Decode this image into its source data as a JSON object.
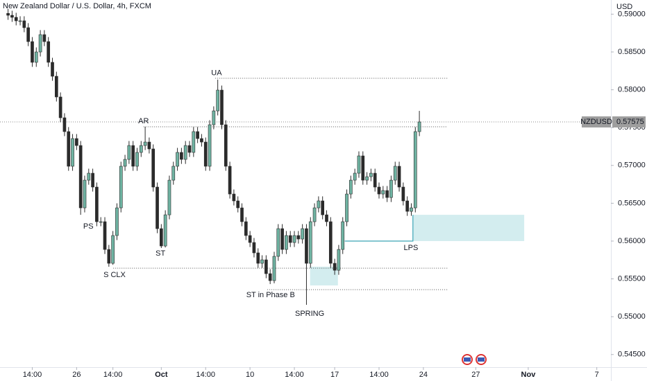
{
  "chart_data": {
    "type": "candlestick",
    "title": "New Zealand Dollar / U.S. Dollar, 4h, FXCM",
    "y_axis_label": "USD",
    "symbol": "NZDUSD",
    "up_color": "#6fb3a2",
    "down_color": "#2b2b2b",
    "open": [
      0.5901,
      0.58985,
      0.58958,
      0.58912,
      0.58912,
      0.58821,
      0.58637,
      0.58363,
      0.585,
      0.58729,
      0.58637,
      0.58363,
      0.58179,
      0.57905,
      0.5763,
      0.57447,
      0.56989,
      0.57355,
      0.57263,
      0.56439,
      0.56805,
      0.56897,
      0.56714,
      0.56256,
      0.56256,
      0.55889,
      0.55706,
      0.56073,
      0.56439,
      0.56989,
      0.5708,
      0.57263,
      0.56989,
      0.57172,
      0.57263,
      0.57309,
      0.57218,
      0.56714,
      0.56164,
      0.55935,
      0.56347,
      0.56805,
      0.56989,
      0.57172,
      0.5708,
      0.57263,
      0.57172,
      0.57447,
      0.57355,
      0.57309,
      0.56989,
      0.57538,
      0.57721,
      0.57996,
      0.57538,
      0.56989,
      0.56622,
      0.56531,
      0.56439,
      0.56256,
      0.56073,
      0.55981,
      0.55844,
      0.55706,
      0.55752,
      0.55569,
      0.55477,
      0.55798,
      0.56164,
      0.55889,
      0.56073,
      0.55981,
      0.56073,
      0.56027,
      0.56164,
      0.55706,
      0.56256,
      0.56439,
      0.56531,
      0.56347,
      0.56256,
      0.55706,
      0.55614,
      0.55889,
      0.56256,
      0.56622,
      0.56805,
      0.56897,
      0.57126,
      0.56805,
      0.56851,
      0.56897,
      0.56714,
      0.56622,
      0.56668,
      0.56576,
      0.56805,
      0.56989,
      0.56714,
      0.56531,
      0.56393,
      0.56439,
      0.57447
    ],
    "high": [
      0.5907,
      0.59045,
      0.59018,
      0.58972,
      0.58972,
      0.58881,
      0.58697,
      0.5856,
      0.58789,
      0.58789,
      0.58697,
      0.58423,
      0.58239,
      0.57965,
      0.5769,
      0.57507,
      0.57415,
      0.57415,
      0.57323,
      0.56865,
      0.56957,
      0.56957,
      0.56774,
      0.56316,
      0.56316,
      0.55949,
      0.56133,
      0.56499,
      0.57049,
      0.5714,
      0.57323,
      0.57323,
      0.57232,
      0.57323,
      0.57511,
      0.57369,
      0.57278,
      0.56774,
      0.56224,
      0.56407,
      0.56865,
      0.57049,
      0.57232,
      0.57232,
      0.57323,
      0.57323,
      0.57507,
      0.57507,
      0.57415,
      0.57369,
      0.57598,
      0.57781,
      0.58134,
      0.58056,
      0.57598,
      0.57049,
      0.56682,
      0.56591,
      0.56499,
      0.56316,
      0.56133,
      0.56041,
      0.55904,
      0.55812,
      0.55812,
      0.55629,
      0.55858,
      0.56224,
      0.56224,
      0.56133,
      0.56133,
      0.56133,
      0.56133,
      0.56224,
      0.56224,
      0.56316,
      0.56499,
      0.56591,
      0.56591,
      0.56407,
      0.56316,
      0.55766,
      0.55949,
      0.56316,
      0.56682,
      0.56865,
      0.56957,
      0.57186,
      0.57186,
      0.56911,
      0.56957,
      0.56957,
      0.56774,
      0.56728,
      0.56728,
      0.56865,
      0.57049,
      0.57049,
      0.56774,
      0.56591,
      0.56499,
      0.57507,
      0.57721
    ],
    "low": [
      0.58925,
      0.58898,
      0.58852,
      0.58852,
      0.58761,
      0.58577,
      0.58303,
      0.58303,
      0.5844,
      0.58577,
      0.58303,
      0.58119,
      0.57845,
      0.5757,
      0.57387,
      0.56929,
      0.56929,
      0.57203,
      0.56347,
      0.56379,
      0.56745,
      0.56654,
      0.56196,
      0.56196,
      0.55829,
      0.5566,
      0.55686,
      0.56013,
      0.56379,
      0.56929,
      0.5702,
      0.56929,
      0.56929,
      0.57112,
      0.57203,
      0.57158,
      0.56654,
      0.56104,
      0.55908,
      0.55915,
      0.56287,
      0.56745,
      0.56929,
      0.5702,
      0.5702,
      0.57112,
      0.57112,
      0.57295,
      0.57249,
      0.56929,
      0.56929,
      0.57478,
      0.57661,
      0.57478,
      0.56929,
      0.56562,
      0.56471,
      0.56379,
      0.56196,
      0.56013,
      0.55921,
      0.55784,
      0.55646,
      0.55646,
      0.55509,
      0.55431,
      0.55441,
      0.55738,
      0.55829,
      0.55829,
      0.55921,
      0.55921,
      0.55967,
      0.55967,
      0.55157,
      0.55646,
      0.56196,
      0.56379,
      0.56287,
      0.56196,
      0.55646,
      0.55554,
      0.55554,
      0.55829,
      0.56196,
      0.56562,
      0.56745,
      0.56837,
      0.56745,
      0.56745,
      0.56791,
      0.56654,
      0.56562,
      0.56562,
      0.56516,
      0.56516,
      0.56745,
      0.56654,
      0.56471,
      0.56333,
      0.56333,
      0.56379,
      0.57387
    ],
    "close": [
      0.58985,
      0.58958,
      0.58912,
      0.58912,
      0.58821,
      0.58637,
      0.58363,
      0.585,
      0.58729,
      0.58637,
      0.58363,
      0.58179,
      0.57905,
      0.5763,
      0.57447,
      0.56989,
      0.57355,
      0.57263,
      0.56439,
      0.56805,
      0.56897,
      0.56714,
      0.56256,
      0.56256,
      0.55889,
      0.55706,
      0.56073,
      0.56439,
      0.56989,
      0.5708,
      0.57263,
      0.56989,
      0.57172,
      0.57263,
      0.57309,
      0.57218,
      0.56714,
      0.56164,
      0.55935,
      0.56347,
      0.56805,
      0.56989,
      0.57172,
      0.5708,
      0.57263,
      0.57172,
      0.57447,
      0.57355,
      0.57309,
      0.56989,
      0.57538,
      0.57721,
      0.57996,
      0.57538,
      0.56989,
      0.56622,
      0.56531,
      0.56439,
      0.56256,
      0.56073,
      0.55981,
      0.55844,
      0.55706,
      0.55752,
      0.55569,
      0.55477,
      0.55798,
      0.56164,
      0.55889,
      0.56073,
      0.55981,
      0.56073,
      0.56027,
      0.56164,
      0.55706,
      0.56256,
      0.56439,
      0.56531,
      0.56347,
      0.56256,
      0.55706,
      0.55614,
      0.55889,
      0.56256,
      0.56622,
      0.56805,
      0.56897,
      0.57126,
      0.56805,
      0.56851,
      0.56897,
      0.56714,
      0.56622,
      0.56668,
      0.56576,
      0.56805,
      0.56989,
      0.56714,
      0.56531,
      0.56393,
      0.56439,
      0.57447,
      0.57575
    ],
    "xlim": [
      -2,
      149.5
    ],
    "ylim": [
      0.54333,
      0.59187
    ],
    "xticks": [
      {
        "value": 6,
        "label": "14:00"
      },
      {
        "value": 17,
        "label": "26"
      },
      {
        "value": 26,
        "label": "14:00"
      },
      {
        "value": 38,
        "label": "Oct"
      },
      {
        "value": 49,
        "label": "14:00"
      },
      {
        "value": 60,
        "label": "10"
      },
      {
        "value": 71,
        "label": "14:00"
      },
      {
        "value": 81,
        "label": "17"
      },
      {
        "value": 92,
        "label": "14:00"
      },
      {
        "value": 103,
        "label": "24"
      },
      {
        "value": 116,
        "label": "27"
      },
      {
        "value": 129,
        "label": "Nov"
      },
      {
        "value": 146,
        "label": "7"
      }
    ],
    "yticks": [
      {
        "value": 0.545,
        "label": "0.54500"
      },
      {
        "value": 0.55,
        "label": "0.55000"
      },
      {
        "value": 0.555,
        "label": "0.55500"
      },
      {
        "value": 0.56,
        "label": "0.56000"
      },
      {
        "value": 0.565,
        "label": "0.56500"
      },
      {
        "value": 0.57,
        "label": "0.57000"
      },
      {
        "value": 0.575,
        "label": "0.57500"
      },
      {
        "value": 0.58,
        "label": "0.58000"
      },
      {
        "value": 0.585,
        "label": "0.58500"
      },
      {
        "value": 0.59,
        "label": "0.59000"
      }
    ],
    "grid": false,
    "levels": [
      {
        "value": 0.58152,
        "from": 51.4,
        "to": 109
      },
      {
        "value": 0.57511,
        "from": 33.6,
        "to": 109
      },
      {
        "value": 0.55642,
        "from": 26.1,
        "to": 109
      },
      {
        "value": 0.55358,
        "from": 64.3,
        "to": 109
      }
    ],
    "zones": [
      {
        "from": 100.4,
        "to": 128,
        "top": 0.56347,
        "bottom": 0.56
      },
      {
        "from": 74.9,
        "to": 81.8,
        "top": 0.55661,
        "bottom": 0.55413
      }
    ],
    "lps_line": {
      "from": 83.5,
      "to": 100.4,
      "value": 0.56,
      "top": 0.56347
    },
    "annotations": [
      {
        "text": "PS",
        "x": 19.9,
        "y": 0.56192
      },
      {
        "text": "S CLX",
        "x": 26.4,
        "y": 0.55551
      },
      {
        "text": "AR",
        "x": 33.6,
        "y": 0.57584
      },
      {
        "text": "ST",
        "x": 37.8,
        "y": 0.55834
      },
      {
        "text": "UA",
        "x": 51.7,
        "y": 0.5822
      },
      {
        "text": "ST in Phase B",
        "x": 65.1,
        "y": 0.55285
      },
      {
        "text": "SPRING",
        "x": 74.8,
        "y": 0.55037
      },
      {
        "text": "LPS",
        "x": 99.9,
        "y": 0.55908
      }
    ]
  }
}
